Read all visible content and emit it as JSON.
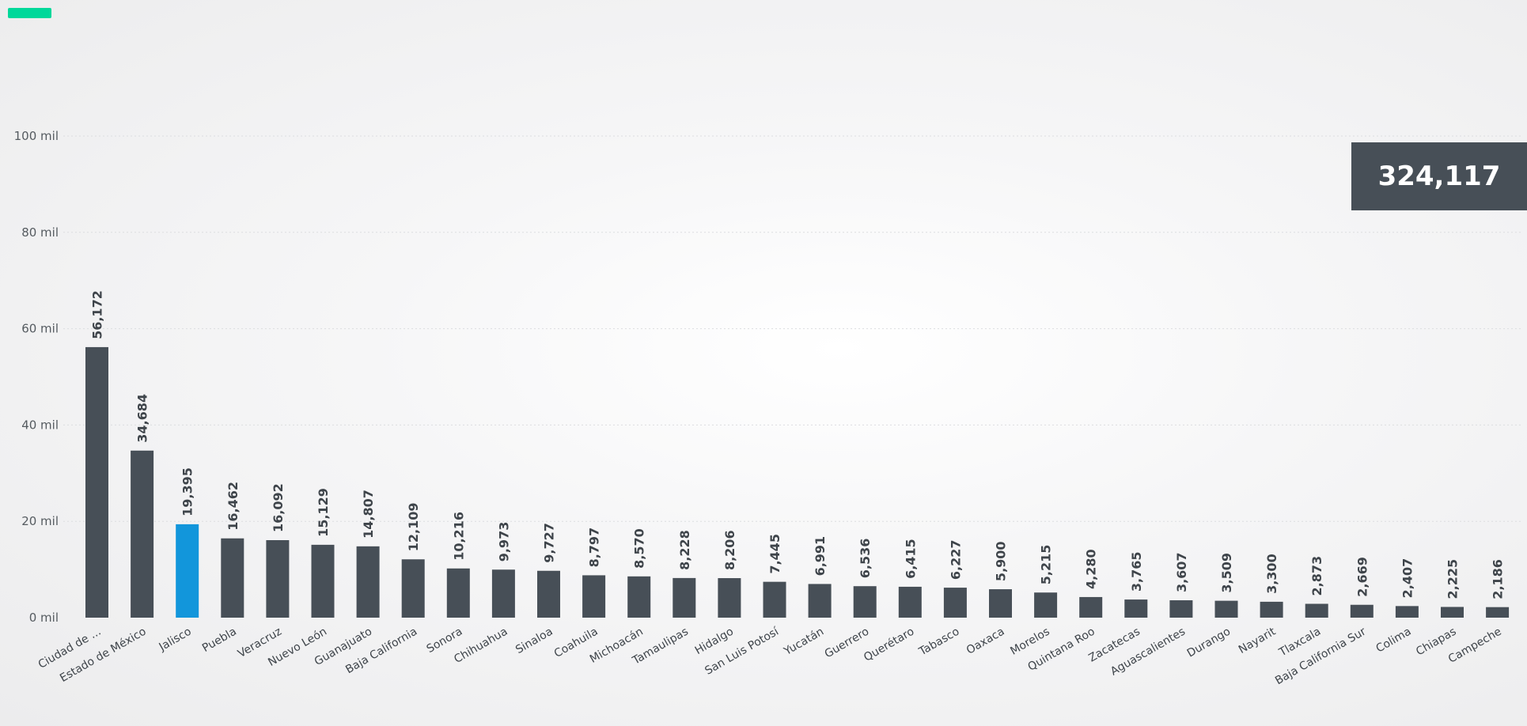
{
  "header": {
    "accent_color": "#00d89a"
  },
  "total": {
    "value": "324,117"
  },
  "chart_data": {
    "type": "bar",
    "title": "",
    "xlabel": "",
    "ylabel": "",
    "ylim": [
      0,
      100000
    ],
    "y_ticks": [
      {
        "value": 0,
        "label": "0 mil"
      },
      {
        "value": 20000,
        "label": "20 mil"
      },
      {
        "value": 40000,
        "label": "40 mil"
      },
      {
        "value": 60000,
        "label": "60 mil"
      },
      {
        "value": 80000,
        "label": "80 mil"
      },
      {
        "value": 100000,
        "label": "100 mil"
      }
    ],
    "grid": true,
    "bar_color": "#474f57",
    "highlight_color": "#1296db",
    "highlight_category": "Jalisco",
    "categories": [
      "Ciudad de ...",
      "Estado de México",
      "Jalisco",
      "Puebla",
      "Veracruz",
      "Nuevo León",
      "Guanajuato",
      "Baja California",
      "Sonora",
      "Chihuahua",
      "Sinaloa",
      "Coahuila",
      "Michoacán",
      "Tamaulipas",
      "Hidalgo",
      "San Luis Potosí",
      "Yucatán",
      "Guerrero",
      "Querétaro",
      "Tabasco",
      "Oaxaca",
      "Morelos",
      "Quintana Roo",
      "Zacatecas",
      "Aguascalientes",
      "Durango",
      "Nayarit",
      "Tlaxcala",
      "Baja California Sur",
      "Colima",
      "Chiapas",
      "Campeche"
    ],
    "values": [
      56172,
      34684,
      19395,
      16462,
      16092,
      15129,
      14807,
      12109,
      10216,
      9973,
      9727,
      8797,
      8570,
      8228,
      8206,
      7445,
      6991,
      6536,
      6415,
      6227,
      5900,
      5215,
      4280,
      3765,
      3607,
      3509,
      3300,
      2873,
      2669,
      2407,
      2225,
      2186
    ],
    "value_labels": [
      "56,172",
      "34,684",
      "19,395",
      "16,462",
      "16,092",
      "15,129",
      "14,807",
      "12,109",
      "10,216",
      "9,973",
      "9,727",
      "8,797",
      "8,570",
      "8,228",
      "8,206",
      "7,445",
      "6,991",
      "6,536",
      "6,415",
      "6,227",
      "5,900",
      "5,215",
      "4,280",
      "3,765",
      "3,607",
      "3,509",
      "3,300",
      "2,873",
      "2,669",
      "2,407",
      "2,225",
      "2,186"
    ]
  }
}
